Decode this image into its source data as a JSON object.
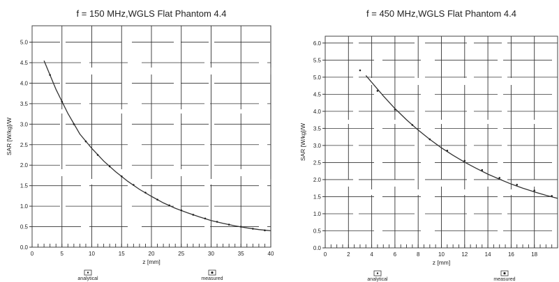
{
  "chart_data": [
    {
      "type": "line",
      "title": "f = 150 MHz,WGLS Flat Phantom 4.4",
      "xlabel": "z [mm]",
      "ylabel": "SAR [W/kg]/W",
      "xlim": [
        0,
        40
      ],
      "ylim": [
        0,
        5.4
      ],
      "xticks": [
        0,
        5,
        10,
        15,
        20,
        25,
        30,
        35,
        40
      ],
      "yticks": [
        0.0,
        0.5,
        1.0,
        1.5,
        2.0,
        2.5,
        3.0,
        3.5,
        4.0,
        4.5,
        5.0
      ],
      "grid": true,
      "legend": {
        "placement": "bottom",
        "items": [
          "analytical",
          "measured"
        ]
      },
      "series": [
        {
          "name": "analytical",
          "x": [
            2,
            4,
            6,
            8,
            10,
            12,
            14,
            16,
            18,
            20,
            22,
            24,
            26,
            28,
            30,
            32,
            34,
            36,
            38,
            40
          ],
          "y": [
            4.55,
            3.85,
            3.26,
            2.76,
            2.41,
            2.1,
            1.84,
            1.61,
            1.41,
            1.24,
            1.08,
            0.95,
            0.84,
            0.74,
            0.65,
            0.58,
            0.52,
            0.47,
            0.43,
            0.4
          ]
        },
        {
          "name": "measured",
          "x": [
            3,
            5,
            7,
            9,
            11,
            13,
            15,
            17,
            19,
            21,
            23,
            25,
            27,
            29,
            31,
            33,
            35,
            37,
            39
          ],
          "y": [
            4.2,
            3.55,
            3.0,
            2.58,
            2.25,
            1.97,
            1.73,
            1.52,
            1.33,
            1.16,
            1.02,
            0.9,
            0.79,
            0.7,
            0.62,
            0.55,
            0.5,
            0.45,
            0.41
          ]
        }
      ]
    },
    {
      "type": "line",
      "title": "f = 450 MHz,WGLS Flat Phantom 4.4",
      "xlabel": "z [mm]",
      "ylabel": "SAR [W/kg]/W",
      "xlim": [
        0,
        20
      ],
      "ylim": [
        0,
        6.2
      ],
      "xticks": [
        0,
        2,
        4,
        6,
        8,
        10,
        12,
        14,
        16,
        18
      ],
      "yticks": [
        0.0,
        0.5,
        1.0,
        1.5,
        2.0,
        2.5,
        3.0,
        3.5,
        4.0,
        4.5,
        5.0,
        5.5,
        6.0
      ],
      "grid": true,
      "legend": {
        "placement": "bottom",
        "items": [
          "analytical",
          "measured"
        ]
      },
      "series": [
        {
          "name": "analytical",
          "x": [
            3.5,
            4,
            5,
            6,
            7,
            8,
            9,
            10,
            11,
            12,
            13,
            14,
            15,
            16,
            17,
            18,
            19,
            20
          ],
          "y": [
            5.05,
            4.85,
            4.45,
            4.08,
            3.75,
            3.45,
            3.18,
            2.93,
            2.71,
            2.51,
            2.33,
            2.16,
            2.01,
            1.87,
            1.75,
            1.64,
            1.54,
            1.45
          ]
        },
        {
          "name": "measured",
          "x": [
            3,
            4.5,
            6,
            7.5,
            9,
            10.5,
            12,
            13.5,
            15,
            16.5,
            18,
            19.5
          ],
          "y": [
            5.2,
            4.6,
            4.05,
            3.6,
            3.18,
            2.85,
            2.55,
            2.28,
            2.05,
            1.85,
            1.68,
            1.52
          ]
        }
      ]
    }
  ]
}
